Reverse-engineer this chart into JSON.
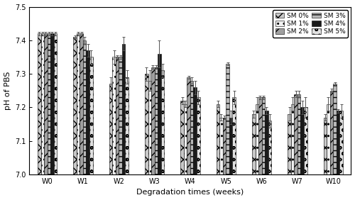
{
  "weeks": [
    "W0",
    "W1",
    "W2",
    "W3",
    "W4",
    "W5",
    "W6",
    "W7",
    "W10"
  ],
  "series": {
    "SM 0%": [
      7.42,
      7.41,
      7.27,
      7.3,
      7.22,
      7.21,
      7.18,
      7.18,
      7.17
    ],
    "SM 1%": [
      7.42,
      7.42,
      7.35,
      7.28,
      7.21,
      7.17,
      7.21,
      7.21,
      7.21
    ],
    "SM 2%": [
      7.42,
      7.42,
      7.35,
      7.32,
      7.29,
      7.17,
      7.23,
      7.24,
      7.25
    ],
    "SM 3%": [
      7.42,
      7.4,
      7.35,
      7.32,
      7.28,
      7.33,
      7.23,
      7.24,
      7.27
    ],
    "SM 4%": [
      7.42,
      7.37,
      7.39,
      7.36,
      7.26,
      7.17,
      7.19,
      7.2,
      7.19
    ],
    "SM 5%": [
      7.42,
      7.35,
      7.29,
      7.31,
      7.23,
      7.23,
      7.16,
      7.2,
      7.19
    ]
  },
  "errors": {
    "SM 0%": [
      0.005,
      0.005,
      0.02,
      0.02,
      0.01,
      0.01,
      0.01,
      0.02,
      0.01
    ],
    "SM 1%": [
      0.005,
      0.005,
      0.02,
      0.03,
      0.01,
      0.01,
      0.02,
      0.02,
      0.02
    ],
    "SM 2%": [
      0.005,
      0.005,
      0.005,
      0.005,
      0.005,
      0.005,
      0.005,
      0.01,
      0.005
    ],
    "SM 3%": [
      0.005,
      0.01,
      0.005,
      0.005,
      0.01,
      0.005,
      0.005,
      0.01,
      0.005
    ],
    "SM 4%": [
      0.005,
      0.02,
      0.02,
      0.04,
      0.02,
      0.02,
      0.01,
      0.02,
      0.005
    ],
    "SM 5%": [
      0.005,
      0.02,
      0.02,
      0.02,
      0.02,
      0.02,
      0.02,
      0.03,
      0.02
    ]
  },
  "ylim": [
    7.0,
    7.5
  ],
  "yticks": [
    7.0,
    7.1,
    7.2,
    7.3,
    7.4,
    7.5
  ],
  "xlabel": "Degradation times (weeks)",
  "ylabel": "pH of PBS",
  "bar_colors": [
    "#c8c8c8",
    "#f0f0f0",
    "#a0a0a0",
    "#b8b8b8",
    "#1a1a1a",
    "#e0e0e0"
  ],
  "hatch_patterns": [
    "xx",
    "..",
    "//",
    "--",
    "",
    "oo"
  ],
  "legend_labels": [
    "SM 0%",
    "SM 1%",
    "SM 2%",
    "SM 3%",
    "SM 4%",
    "SM 5%"
  ],
  "bar_width": 0.09,
  "figsize": [
    5.0,
    2.82
  ],
  "dpi": 100
}
